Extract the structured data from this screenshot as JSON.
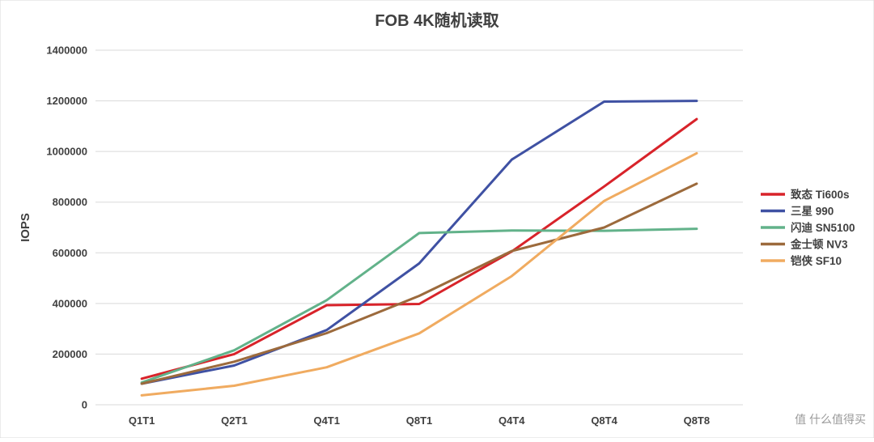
{
  "chart_data": {
    "type": "line",
    "title": "FOB 4K随机读取",
    "xlabel": "",
    "ylabel": "IOPS",
    "categories": [
      "Q1T1",
      "Q2T1",
      "Q4T1",
      "Q8T1",
      "Q4T4",
      "Q8T4",
      "Q8T8"
    ],
    "ylim": [
      0,
      1400000
    ],
    "yticks": [
      "0",
      "200000",
      "400000",
      "600000",
      "800000",
      "1000000",
      "1200000",
      "1400000"
    ],
    "ytick_values": [
      0,
      200000,
      400000,
      600000,
      800000,
      1000000,
      1200000,
      1400000
    ],
    "grid": true,
    "legend_position": "right",
    "series": [
      {
        "name": "致态 Ti600s",
        "color": "#d8232a",
        "values": [
          103000,
          200000,
          393000,
          398000,
          605000,
          862000,
          1128000
        ]
      },
      {
        "name": "三星 990",
        "color": "#3f51a3",
        "values": [
          83000,
          155000,
          295000,
          558000,
          968000,
          1197000,
          1200000
        ]
      },
      {
        "name": "闪迪 SN5100",
        "color": "#62b28a",
        "values": [
          88000,
          215000,
          413000,
          678000,
          688000,
          687000,
          695000
        ]
      },
      {
        "name": "金士顿 NV3",
        "color": "#9c6a3c",
        "values": [
          83000,
          170000,
          283000,
          430000,
          607000,
          700000,
          873000
        ]
      },
      {
        "name": "铠侠 SF10",
        "color": "#f0ab60",
        "values": [
          37000,
          75000,
          148000,
          282000,
          508000,
          805000,
          993000
        ]
      }
    ]
  },
  "watermark": "值 什么值得买"
}
